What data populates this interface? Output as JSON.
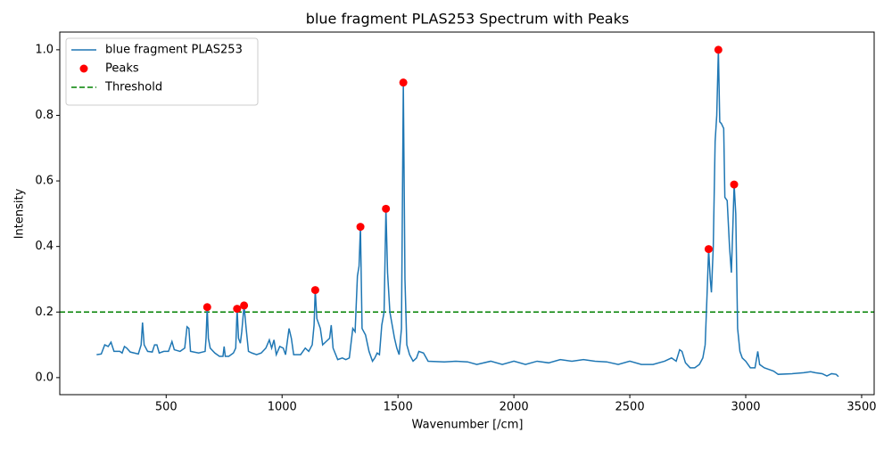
{
  "chart_data": {
    "type": "line",
    "title": "blue fragment PLAS253 Spectrum with Peaks",
    "x_label": "Wavenumber [/cm]",
    "y_label": "Intensity",
    "xlim": [
      41,
      3554
    ],
    "ylim": [
      -0.052,
      1.054
    ],
    "xticks": [
      500,
      1000,
      1500,
      2000,
      2500,
      3000,
      3500
    ],
    "yticks": [
      {
        "value": 0,
        "label": "0.0"
      },
      0.2,
      0.4,
      0.6,
      0.8,
      {
        "value": 1,
        "label": "1.0"
      }
    ],
    "legend": "upper left",
    "series": [
      {
        "name": "blue fragment PLAS253",
        "type": "line",
        "color": "#1f77b4",
        "x": [
          200,
          220,
          235,
          250,
          262,
          275,
          300,
          310,
          320,
          330,
          345,
          380,
          392,
          398,
          405,
          420,
          440,
          450,
          460,
          470,
          490,
          510,
          525,
          535,
          560,
          580,
          590,
          598,
          605,
          640,
          668,
          672,
          677,
          682,
          690,
          710,
          730,
          745,
          750,
          755,
          770,
          790,
          800,
          806,
          812,
          820,
          826,
          836,
          845,
          855,
          870,
          890,
          910,
          930,
          945,
          955,
          965,
          975,
          990,
          1005,
          1015,
          1030,
          1040,
          1050,
          1080,
          1100,
          1115,
          1130,
          1138,
          1143,
          1150,
          1165,
          1175,
          1190,
          1205,
          1212,
          1220,
          1240,
          1260,
          1275,
          1290,
          1305,
          1315,
          1325,
          1332,
          1338,
          1345,
          1360,
          1375,
          1390,
          1400,
          1410,
          1420,
          1430,
          1440,
          1448,
          1455,
          1465,
          1475,
          1485,
          1495,
          1505,
          1515,
          1523,
          1530,
          1538,
          1550,
          1565,
          1580,
          1590,
          1610,
          1630,
          1700,
          1750,
          1800,
          1840,
          1900,
          1950,
          2000,
          2050,
          2100,
          2150,
          2200,
          2250,
          2300,
          2350,
          2400,
          2450,
          2500,
          2550,
          2600,
          2650,
          2680,
          2700,
          2715,
          2725,
          2740,
          2760,
          2780,
          2800,
          2815,
          2825,
          2833,
          2840,
          2847,
          2852,
          2860,
          2868,
          2875,
          2882,
          2888,
          2895,
          2905,
          2910,
          2920,
          2930,
          2938,
          2944,
          2950,
          2957,
          2965,
          2975,
          2985,
          3000,
          3020,
          3040,
          3052,
          3060,
          3080,
          3100,
          3120,
          3140,
          3200,
          3250,
          3280,
          3300,
          3330,
          3350,
          3370,
          3390,
          3400
        ],
        "values": [
          0.07,
          0.072,
          0.1,
          0.095,
          0.108,
          0.08,
          0.08,
          0.075,
          0.095,
          0.09,
          0.078,
          0.072,
          0.1,
          0.168,
          0.1,
          0.08,
          0.078,
          0.1,
          0.1,
          0.075,
          0.08,
          0.08,
          0.11,
          0.085,
          0.08,
          0.09,
          0.155,
          0.15,
          0.08,
          0.075,
          0.08,
          0.12,
          0.215,
          0.12,
          0.09,
          0.075,
          0.065,
          0.065,
          0.095,
          0.065,
          0.065,
          0.075,
          0.09,
          0.21,
          0.12,
          0.105,
          0.14,
          0.22,
          0.15,
          0.08,
          0.075,
          0.07,
          0.075,
          0.09,
          0.115,
          0.09,
          0.115,
          0.07,
          0.095,
          0.09,
          0.07,
          0.15,
          0.12,
          0.07,
          0.07,
          0.09,
          0.08,
          0.1,
          0.16,
          0.267,
          0.18,
          0.15,
          0.1,
          0.11,
          0.12,
          0.16,
          0.09,
          0.055,
          0.06,
          0.055,
          0.06,
          0.15,
          0.14,
          0.31,
          0.34,
          0.46,
          0.15,
          0.13,
          0.08,
          0.05,
          0.06,
          0.075,
          0.07,
          0.16,
          0.2,
          0.515,
          0.32,
          0.2,
          0.16,
          0.12,
          0.09,
          0.07,
          0.15,
          0.9,
          0.3,
          0.1,
          0.07,
          0.05,
          0.06,
          0.08,
          0.075,
          0.05,
          0.048,
          0.05,
          0.048,
          0.04,
          0.05,
          0.04,
          0.05,
          0.04,
          0.05,
          0.045,
          0.055,
          0.05,
          0.055,
          0.05,
          0.048,
          0.04,
          0.05,
          0.04,
          0.04,
          0.05,
          0.06,
          0.05,
          0.085,
          0.08,
          0.045,
          0.03,
          0.03,
          0.04,
          0.06,
          0.1,
          0.25,
          0.392,
          0.3,
          0.26,
          0.4,
          0.72,
          0.8,
          1.0,
          0.78,
          0.775,
          0.76,
          0.55,
          0.54,
          0.4,
          0.32,
          0.45,
          0.589,
          0.5,
          0.15,
          0.08,
          0.06,
          0.05,
          0.03,
          0.03,
          0.08,
          0.04,
          0.03,
          0.025,
          0.02,
          0.01,
          0.012,
          0.015,
          0.018,
          0.015,
          0.012,
          0.005,
          0.012,
          0.01,
          0.003
        ]
      },
      {
        "name": "Peaks",
        "type": "scatter",
        "color": "#ff0000",
        "x": [
          677,
          806,
          836,
          1143,
          1338,
          1448,
          1523,
          2840,
          2882,
          2950
        ],
        "values": [
          0.215,
          0.21,
          0.22,
          0.267,
          0.46,
          0.515,
          0.9,
          0.392,
          1.0,
          0.589
        ]
      }
    ],
    "hlines": [
      {
        "name": "Threshold",
        "color": "#008000",
        "value": 0.2
      }
    ]
  }
}
